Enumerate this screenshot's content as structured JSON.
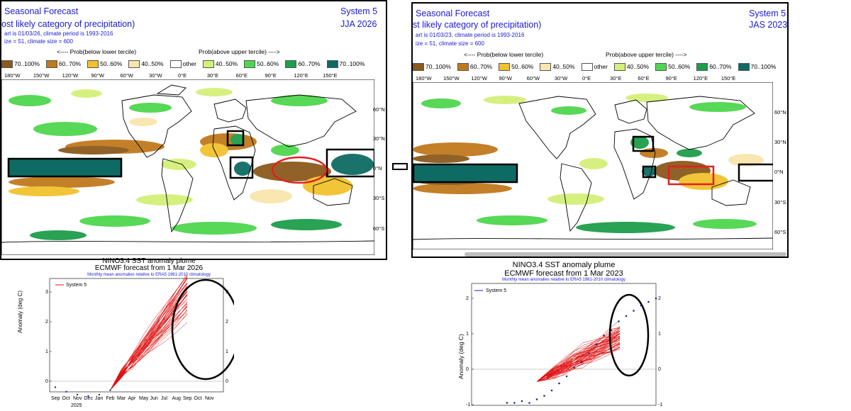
{
  "left_map": {
    "title": "Seasonal Forecast",
    "subtitle": "ost likely category of precipitation)",
    "line1": "art is 01/03/26, climate period is 1993-2016",
    "line2": "ize = 51, climate size = 600",
    "system": "System 5",
    "season": "JJA 2026",
    "below_label": "<---- Prob(below lower tercile)",
    "above_label": "Prob(above upper tercile) ---->",
    "legend": [
      {
        "label": "70..100%",
        "color": "#8b5a1c"
      },
      {
        "label": "60..70%",
        "color": "#c07a1e"
      },
      {
        "label": "50..60%",
        "color": "#f2c22e"
      },
      {
        "label": "40..50%",
        "color": "#f8e6ad"
      },
      {
        "label": "other",
        "color": "#ffffff"
      },
      {
        "label": "40..50%",
        "color": "#d4f07a"
      },
      {
        "label": "50..60%",
        "color": "#4fd64f"
      },
      {
        "label": "60..70%",
        "color": "#1e9e4a"
      },
      {
        "label": "70..100%",
        "color": "#0e6b63"
      }
    ],
    "lon_labels": [
      "180°W",
      "150°W",
      "120°W",
      "90°W",
      "60°W",
      "30°W",
      "0°E",
      "30°E",
      "60°E",
      "90°E",
      "120°E",
      "150°E"
    ],
    "lat_labels": [
      "60°N",
      "30°N",
      "0°N",
      "30°S",
      "60°S"
    ]
  },
  "right_map": {
    "title": "Seasonal Forecast",
    "subtitle": "st likely category of precipitation)",
    "line1": "art is 01/03/23, climate period is 1993-2016",
    "line2": "ize = 51, climate size = 600",
    "system": "System 5",
    "season": "JAS 2023",
    "below_label": "<---- Prob(below lower tercile)",
    "above_label": "Prob(above upper tercile) ---->",
    "legend": [
      {
        "label": "70..100%",
        "color": "#8b5a1c"
      },
      {
        "label": "60..70%",
        "color": "#c07a1e"
      },
      {
        "label": "50..60%",
        "color": "#f2c22e"
      },
      {
        "label": "40..50%",
        "color": "#f8e6ad"
      },
      {
        "label": "other",
        "color": "#ffffff"
      },
      {
        "label": "40..50%",
        "color": "#d4f07a"
      },
      {
        "label": "50..60%",
        "color": "#4fd64f"
      },
      {
        "label": "60..70%",
        "color": "#1e9e4a"
      },
      {
        "label": "70..100%",
        "color": "#0e6b63"
      }
    ],
    "lon_labels": [
      "180°W",
      "150°W",
      "120°W",
      "90°W",
      "60°W",
      "30°W",
      "0°E",
      "30°E",
      "60°E",
      "90°E",
      "120°E",
      "150°E"
    ],
    "lat_labels": [
      "60°N",
      "30°N",
      "0°N",
      "30°S",
      "60°S"
    ]
  },
  "equals_sign": "=",
  "left_plume": {
    "title1": "NINO3.4 SST anomaly plume",
    "title2": "ECMWF forecast from 1 Mar 2026",
    "subtitle": "Monthly mean anomalies relative to ERA5 1981-2010 climatology",
    "legend": "System 5",
    "ylabel": "Anomaly (deg C)",
    "months": [
      "Sep",
      "Oct",
      "Nov",
      "Dec",
      "Jan",
      "Feb",
      "Mar",
      "Apr",
      "May",
      "Jun",
      "Jul",
      "Aug",
      "Sep",
      "Oct",
      "Nov"
    ],
    "year_label": "2025",
    "yticks": [
      "0",
      "1",
      "2",
      "3"
    ]
  },
  "right_plume": {
    "title1": "NINO3.4 SST anomaly plume",
    "title2": "ECMWF forecast from 1 Mar 2023",
    "subtitle": "Monthly mean anomalies relative to ERA5 1981-2010 climatology",
    "legend": "System 5",
    "ylabel": "Anomaly (deg C)",
    "yticks": [
      "-1",
      "0",
      "1",
      "2"
    ]
  },
  "colors": {
    "title_blue": "#1a1ad6",
    "plume_red": "#e01010",
    "obs_dots": "#1a2a7a",
    "highlight_box": "#000000",
    "red_highlight": "#e02020"
  }
}
